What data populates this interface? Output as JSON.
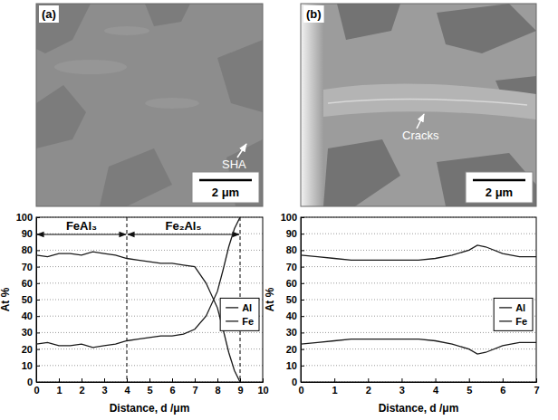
{
  "chart_data": [
    {
      "type": "line",
      "x_label": "Distance, d /μm",
      "y_label": "At %",
      "x": [
        0,
        0.5,
        1,
        1.5,
        2,
        2.5,
        3,
        3.5,
        4,
        4.5,
        5,
        5.5,
        6,
        6.5,
        7,
        7.5,
        8,
        8.25,
        8.5,
        8.75,
        9
      ],
      "series": [
        {
          "name": "Al",
          "color": "#1a1a1a",
          "values": [
            77,
            76,
            78,
            78,
            77,
            79,
            78,
            77,
            75,
            74,
            73,
            72,
            72,
            71,
            70,
            60,
            45,
            32,
            18,
            7,
            0
          ]
        },
        {
          "name": "Fe",
          "color": "#1a1a1a",
          "values": [
            23,
            24,
            22,
            22,
            23,
            21,
            22,
            23,
            25,
            26,
            27,
            28,
            28,
            29,
            32,
            40,
            55,
            68,
            82,
            93,
            100
          ]
        }
      ],
      "regions": [
        {
          "label": "FeAl₃",
          "from": 0,
          "to": 4
        },
        {
          "label": "Fe₂Al₅",
          "from": 4,
          "to": 9
        }
      ],
      "xlim": [
        0,
        10
      ],
      "xticks": [
        0,
        1,
        2,
        3,
        4,
        5,
        6,
        7,
        8,
        9,
        10
      ],
      "ylim": [
        0,
        100
      ],
      "yticks": [
        0,
        10,
        20,
        30,
        40,
        50,
        60,
        70,
        80,
        90,
        100
      ],
      "grid": true,
      "legend": "right"
    },
    {
      "type": "line",
      "x_label": "Distance, d /μm",
      "y_label": "At %",
      "x": [
        0,
        0.5,
        1,
        1.5,
        2,
        2.5,
        3,
        3.5,
        4,
        4.5,
        5,
        5.25,
        5.5,
        6,
        6.5,
        7
      ],
      "series": [
        {
          "name": "Al",
          "color": "#1a1a1a",
          "values": [
            77,
            76,
            75,
            74,
            74,
            74,
            74,
            74,
            75,
            77,
            80,
            83,
            82,
            78,
            76,
            76
          ]
        },
        {
          "name": "Fe",
          "color": "#1a1a1a",
          "values": [
            23,
            24,
            25,
            26,
            26,
            26,
            26,
            26,
            25,
            23,
            20,
            17,
            18,
            22,
            24,
            24
          ]
        }
      ],
      "xlim": [
        0,
        7
      ],
      "xticks": [
        0,
        1,
        2,
        3,
        4,
        5,
        6,
        7
      ],
      "ylim": [
        0,
        100
      ],
      "yticks": [
        0,
        10,
        20,
        30,
        40,
        50,
        60,
        70,
        80,
        90,
        100
      ],
      "grid": true,
      "legend": "right"
    }
  ],
  "panels": [
    {
      "letter": "(a)",
      "label": "SHA",
      "scale_bar": "2 μm"
    },
    {
      "letter": "(b)",
      "label": "Cracks",
      "scale_bar": "2 μm"
    }
  ]
}
